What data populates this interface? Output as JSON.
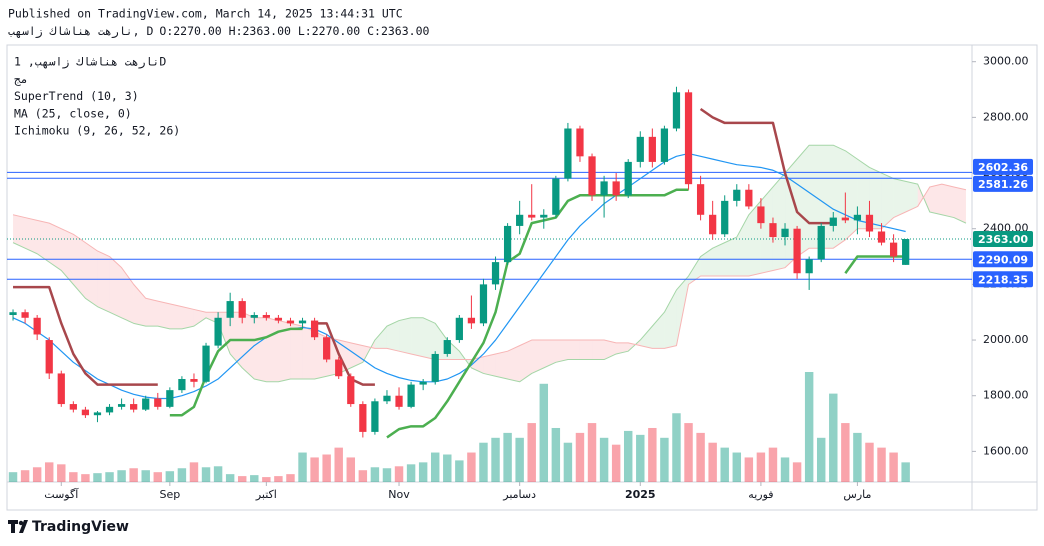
{
  "header": {
    "published": "Published on TradingView.com, March 14, 2025 13:44:31 UTC",
    "symbol": "نارهت هناشاك زاسهب, D",
    "ohlc": "O:2270.00 H:2363.00 L:2270.00 C:2363.00"
  },
  "footer": {
    "brand": "TradingView"
  },
  "chart_data": {
    "type": "candlestick",
    "legend": [
      "نارهت هناشاك زاسهب, 1D",
      "مج",
      "SuperTrend (10, 3)",
      "MA (25, close, 0)",
      "Ichimoku (9, 26, 52, 26)"
    ],
    "xlim": [
      -0.5,
      79.5
    ],
    "ylim": [
      1490,
      3060
    ],
    "yticks": [
      {
        "value": 1600,
        "label": "1600.00"
      },
      {
        "value": 1800,
        "label": "1800.00"
      },
      {
        "value": 2000,
        "label": "2000.00"
      },
      {
        "value": 2200,
        "label": "2200.00"
      },
      {
        "value": 2400,
        "label": "2400.00"
      },
      {
        "value": 2600,
        "label": "2600.00"
      },
      {
        "value": 2800,
        "label": "2800.00"
      },
      {
        "value": 3000,
        "label": "3000.00"
      }
    ],
    "xticks": [
      {
        "value": 4,
        "label": "آگوست"
      },
      {
        "value": 13,
        "label": "Sep"
      },
      {
        "value": 21,
        "label": "اکتبر"
      },
      {
        "value": 32,
        "label": "Nov"
      },
      {
        "value": 42,
        "label": "دسامبر"
      },
      {
        "value": 52,
        "label": "2025"
      },
      {
        "value": 62,
        "label": "فوریه"
      },
      {
        "value": 70,
        "label": "مارس"
      }
    ],
    "up_color": "#089981",
    "down_color": "#f23645",
    "candles": [
      [
        2090,
        2110,
        2070,
        2100
      ],
      [
        2100,
        2110,
        2060,
        2080
      ],
      [
        2080,
        2090,
        2000,
        2020
      ],
      [
        2000,
        2010,
        1860,
        1880
      ],
      [
        1880,
        1890,
        1760,
        1770
      ],
      [
        1770,
        1780,
        1740,
        1750
      ],
      [
        1750,
        1760,
        1720,
        1730
      ],
      [
        1730,
        1745,
        1705,
        1740
      ],
      [
        1740,
        1770,
        1730,
        1760
      ],
      [
        1760,
        1790,
        1750,
        1770
      ],
      [
        1770,
        1790,
        1740,
        1750
      ],
      [
        1750,
        1800,
        1745,
        1790
      ],
      [
        1790,
        1810,
        1750,
        1760
      ],
      [
        1760,
        1830,
        1755,
        1820
      ],
      [
        1820,
        1870,
        1810,
        1860
      ],
      [
        1860,
        1880,
        1830,
        1850
      ],
      [
        1850,
        1990,
        1845,
        1980
      ],
      [
        1980,
        2100,
        1970,
        2080
      ],
      [
        2080,
        2170,
        2050,
        2140
      ],
      [
        2140,
        2150,
        2060,
        2080
      ],
      [
        2080,
        2100,
        2060,
        2090
      ],
      [
        2090,
        2100,
        2070,
        2080
      ],
      [
        2080,
        2090,
        2060,
        2070
      ],
      [
        2070,
        2080,
        2050,
        2060
      ],
      [
        2060,
        2080,
        2040,
        2070
      ],
      [
        2070,
        2080,
        2000,
        2010
      ],
      [
        2010,
        2020,
        1920,
        1930
      ],
      [
        1930,
        1940,
        1860,
        1870
      ],
      [
        1870,
        1880,
        1760,
        1770
      ],
      [
        1770,
        1780,
        1650,
        1670
      ],
      [
        1670,
        1790,
        1660,
        1780
      ],
      [
        1780,
        1820,
        1770,
        1800
      ],
      [
        1800,
        1830,
        1750,
        1760
      ],
      [
        1760,
        1850,
        1755,
        1840
      ],
      [
        1840,
        1860,
        1820,
        1850
      ],
      [
        1850,
        1960,
        1840,
        1950
      ],
      [
        1950,
        2010,
        1940,
        2000
      ],
      [
        2000,
        2090,
        1990,
        2080
      ],
      [
        2080,
        2160,
        2040,
        2060
      ],
      [
        2060,
        2220,
        2050,
        2200
      ],
      [
        2200,
        2300,
        2180,
        2280
      ],
      [
        2280,
        2420,
        2270,
        2410
      ],
      [
        2410,
        2500,
        2380,
        2450
      ],
      [
        2450,
        2560,
        2430,
        2440
      ],
      [
        2440,
        2470,
        2400,
        2450
      ],
      [
        2450,
        2590,
        2440,
        2580
      ],
      [
        2580,
        2780,
        2570,
        2760
      ],
      [
        2760,
        2770,
        2640,
        2660
      ],
      [
        2660,
        2670,
        2500,
        2520
      ],
      [
        2520,
        2590,
        2440,
        2570
      ],
      [
        2570,
        2600,
        2500,
        2520
      ],
      [
        2520,
        2650,
        2510,
        2640
      ],
      [
        2640,
        2750,
        2620,
        2730
      ],
      [
        2730,
        2760,
        2620,
        2640
      ],
      [
        2640,
        2770,
        2630,
        2760
      ],
      [
        2760,
        2910,
        2750,
        2890
      ],
      [
        2890,
        2900,
        2540,
        2560
      ],
      [
        2560,
        2590,
        2430,
        2450
      ],
      [
        2450,
        2500,
        2360,
        2380
      ],
      [
        2380,
        2520,
        2370,
        2500
      ],
      [
        2500,
        2560,
        2480,
        2540
      ],
      [
        2540,
        2560,
        2470,
        2480
      ],
      [
        2480,
        2510,
        2400,
        2420
      ],
      [
        2420,
        2440,
        2350,
        2370
      ],
      [
        2370,
        2420,
        2340,
        2400
      ],
      [
        2400,
        2410,
        2220,
        2240
      ],
      [
        2240,
        2300,
        2180,
        2290
      ],
      [
        2290,
        2420,
        2280,
        2410
      ],
      [
        2410,
        2460,
        2390,
        2440
      ],
      [
        2440,
        2530,
        2420,
        2430
      ],
      [
        2430,
        2480,
        2380,
        2450
      ],
      [
        2450,
        2500,
        2370,
        2390
      ],
      [
        2390,
        2420,
        2340,
        2350
      ],
      [
        2350,
        2380,
        2280,
        2300
      ],
      [
        2270,
        2363,
        2270,
        2363
      ]
    ],
    "volume": [
      10,
      12,
      15,
      20,
      18,
      10,
      8,
      9,
      10,
      12,
      14,
      12,
      10,
      11,
      14,
      20,
      15,
      16,
      8,
      6,
      7,
      5,
      6,
      8,
      30,
      25,
      28,
      35,
      25,
      12,
      15,
      14,
      16,
      18,
      20,
      30,
      28,
      22,
      30,
      40,
      45,
      50,
      45,
      60,
      100,
      55,
      40,
      50,
      60,
      45,
      38,
      52,
      48,
      55,
      45,
      70,
      60,
      50,
      40,
      35,
      30,
      25,
      30,
      35,
      25,
      20,
      112,
      45,
      90,
      60,
      50,
      40,
      35,
      30,
      20
    ],
    "ma": {
      "color": "#2196f3",
      "values": [
        2080,
        2060,
        2030,
        2000,
        1960,
        1920,
        1890,
        1860,
        1840,
        1820,
        1805,
        1795,
        1790,
        1790,
        1800,
        1815,
        1835,
        1860,
        1900,
        1940,
        1980,
        2010,
        2030,
        2040,
        2045,
        2040,
        2020,
        1990,
        1960,
        1930,
        1900,
        1880,
        1865,
        1855,
        1850,
        1850,
        1860,
        1880,
        1910,
        1950,
        2000,
        2060,
        2120,
        2180,
        2240,
        2300,
        2360,
        2410,
        2450,
        2490,
        2520,
        2550,
        2580,
        2610,
        2640,
        2660,
        2670,
        2660,
        2650,
        2640,
        2630,
        2625,
        2620,
        2610,
        2590,
        2560,
        2530,
        2500,
        2470,
        2450,
        2430,
        2420,
        2410,
        2400,
        2390
      ]
    },
    "supertrend": [
      {
        "color": "#a8474c",
        "values": [
          2190,
          2190,
          2190,
          2190,
          2060,
          1950,
          1880,
          1840,
          1840,
          1840,
          1840,
          1840,
          1840,
          null,
          null,
          null,
          null,
          null,
          null,
          null,
          null,
          null,
          null,
          null,
          null,
          2060,
          2060,
          1950,
          1860,
          1840,
          1840,
          null,
          null,
          null,
          null,
          null,
          null,
          null,
          null,
          null,
          null,
          null,
          null,
          null,
          null,
          null,
          null,
          null,
          null,
          null,
          null,
          null,
          null,
          null,
          null,
          null,
          null,
          2830,
          2800,
          2780,
          2780,
          2780,
          2780,
          2780,
          2600,
          2460,
          2420,
          2420,
          2420,
          null,
          null,
          null,
          null,
          null,
          null
        ]
      },
      {
        "color": "#4caf50",
        "values": [
          null,
          null,
          null,
          null,
          null,
          null,
          null,
          null,
          null,
          null,
          null,
          null,
          null,
          1730,
          1730,
          1760,
          1870,
          1960,
          2000,
          2000,
          2000,
          2010,
          2030,
          2040,
          2040,
          null,
          null,
          null,
          null,
          null,
          null,
          1650,
          1680,
          1690,
          1690,
          1720,
          1780,
          1850,
          1920,
          1990,
          2100,
          2280,
          2310,
          2420,
          2430,
          2440,
          2500,
          2520,
          2520,
          2520,
          2520,
          2520,
          2520,
          2520,
          2520,
          2540,
          2540,
          null,
          null,
          null,
          null,
          null,
          null,
          null,
          null,
          null,
          null,
          null,
          null,
          2240,
          2300,
          2300,
          2300,
          2300,
          2300
        ]
      }
    ],
    "ichimoku": {
      "span_a": {
        "color": "#a5d6a7",
        "values": [
          2350,
          2330,
          2310,
          2280,
          2250,
          2200,
          2150,
          2120,
          2100,
          2080,
          2060,
          2050,
          2050,
          2040,
          2040,
          2050,
          2080,
          2060,
          1950,
          1900,
          1860,
          1850,
          1850,
          1860,
          1860,
          1860,
          1870,
          1880,
          1900,
          1920,
          2000,
          2050,
          2070,
          2080,
          2080,
          2060,
          2000,
          1960,
          1900,
          1880,
          1870,
          1860,
          1850,
          1880,
          1900,
          1920,
          1930,
          1930,
          1930,
          1930,
          1950,
          1960,
          2000,
          2050,
          2100,
          2180,
          2230,
          2300,
          2330,
          2350,
          2370,
          2450,
          2500,
          2550,
          2600,
          2650,
          2700,
          2700,
          2700,
          2680,
          2650,
          2620,
          2600,
          2580,
          2570,
          2560,
          2460,
          2450,
          2440,
          2420
        ]
      },
      "span_b": {
        "color": "#f7b5b5",
        "values": [
          2450,
          2440,
          2430,
          2420,
          2400,
          2380,
          2350,
          2320,
          2300,
          2260,
          2200,
          2150,
          2140,
          2130,
          2120,
          2110,
          2100,
          2100,
          2100,
          2100,
          2080,
          2080,
          2070,
          2060,
          2050,
          2030,
          2010,
          2000,
          1990,
          1980,
          1970,
          1970,
          1960,
          1950,
          1940,
          1930,
          1930,
          1930,
          1930,
          1940,
          1950,
          1960,
          1980,
          2000,
          2000,
          2000,
          2000,
          2000,
          2000,
          2000,
          1990,
          1990,
          1980,
          1970,
          1970,
          1980,
          2200,
          2230,
          2230,
          2230,
          2230,
          2230,
          2240,
          2250,
          2260,
          2300,
          2330,
          2330,
          2330,
          2360,
          2400,
          2400,
          2400,
          2440,
          2460,
          2480,
          2550,
          2560,
          2550,
          2540
        ]
      },
      "up_fill": "rgba(76,175,80,0.12)",
      "down_fill": "rgba(242,54,69,0.12)"
    },
    "levels": [
      {
        "value": 2602.36,
        "color": "#2962ff"
      },
      {
        "value": 2581.26,
        "color": "#2962ff"
      },
      {
        "value": 2290.09,
        "color": "#2962ff"
      },
      {
        "value": 2218.35,
        "color": "#2962ff"
      }
    ],
    "last_price": {
      "value": 2363,
      "label": "2363.00",
      "color": "#089981"
    }
  }
}
